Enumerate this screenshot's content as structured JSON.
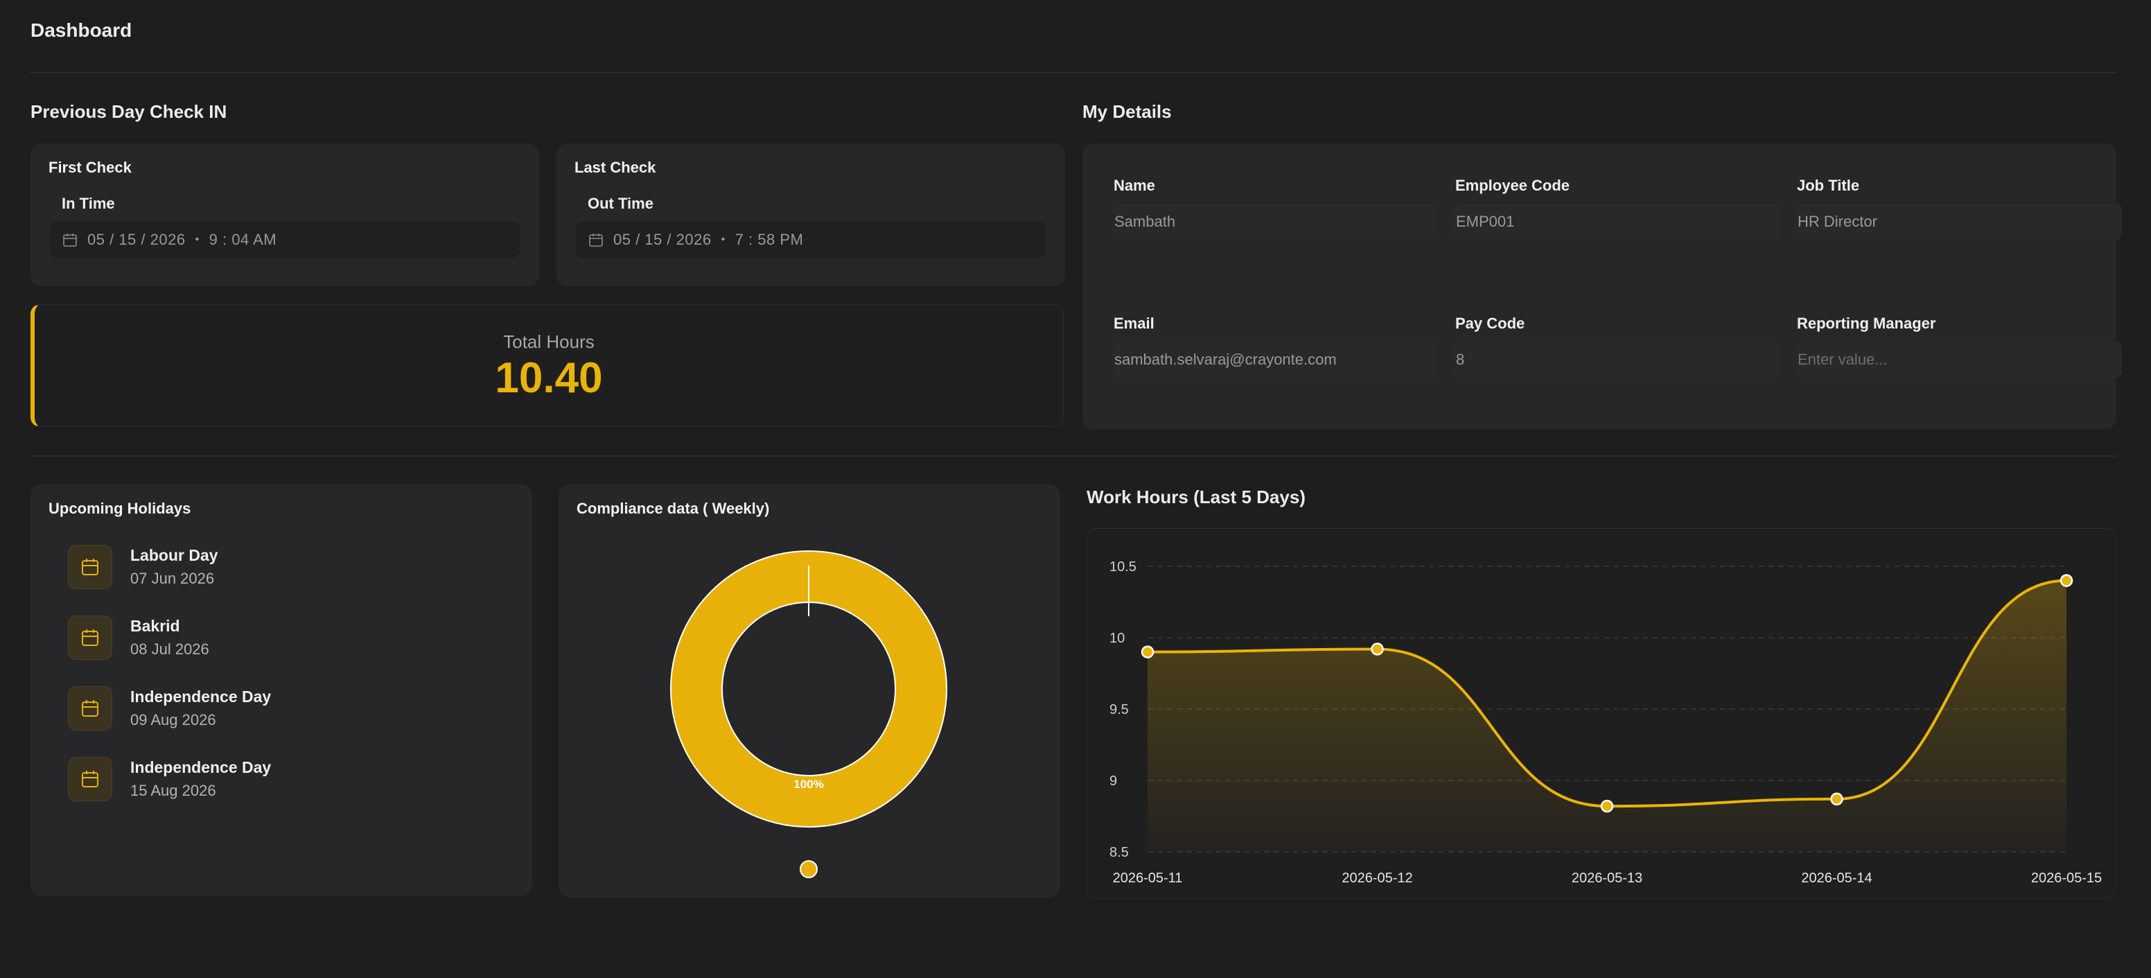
{
  "header": {
    "title": "Dashboard"
  },
  "previous_day": {
    "section_title": "Previous Day Check IN",
    "first_check": {
      "title": "First Check",
      "label": "In Time",
      "date": "05 / 15 / 2026",
      "time": "9 : 04 AM"
    },
    "last_check": {
      "title": "Last Check",
      "label": "Out Time",
      "date": "05 / 15 / 2026",
      "time": "7 : 58 PM"
    },
    "total_hours": {
      "label": "Total Hours",
      "value": "10.40"
    }
  },
  "my_details": {
    "section_title": "My Details",
    "fields": [
      {
        "label": "Name",
        "value": "Sambath"
      },
      {
        "label": "Employee Code",
        "value": "EMP001"
      },
      {
        "label": "Job Title",
        "value": "HR Director"
      },
      {
        "label": "Email",
        "value": "sambath.selvaraj@crayonte.com"
      },
      {
        "label": "Pay Code",
        "value": "8"
      },
      {
        "label": "Reporting Manager",
        "value": "",
        "placeholder": "Enter value..."
      }
    ]
  },
  "holidays": {
    "title": "Upcoming Holidays",
    "items": [
      {
        "name": "Labour Day",
        "date": "07 Jun 2026"
      },
      {
        "name": "Bakrid",
        "date": "08 Jul 2026"
      },
      {
        "name": "Independence Day",
        "date": "09 Aug 2026"
      },
      {
        "name": "Independence Day",
        "date": "15 Aug 2026"
      }
    ]
  },
  "compliance": {
    "title": "Compliance data ( Weekly)",
    "percent_label": "100%",
    "value": 100,
    "color": "#e8b10a"
  },
  "work_hours": {
    "title": "Work Hours (Last 5 Days)"
  },
  "colors": {
    "accent": "#eab308",
    "background": "#1e1e1e",
    "card": "#272729"
  },
  "chart_data": {
    "type": "area",
    "x": [
      "2026-05-11",
      "2026-05-12",
      "2026-05-13",
      "2026-05-14",
      "2026-05-15"
    ],
    "values": [
      9.9,
      9.92,
      8.82,
      8.87,
      10.4
    ],
    "y_ticks": [
      "10.5",
      "10",
      "9.5",
      "9",
      "8.5"
    ],
    "ylim": [
      8.5,
      10.5
    ],
    "grid": true,
    "color": "#eab308"
  }
}
